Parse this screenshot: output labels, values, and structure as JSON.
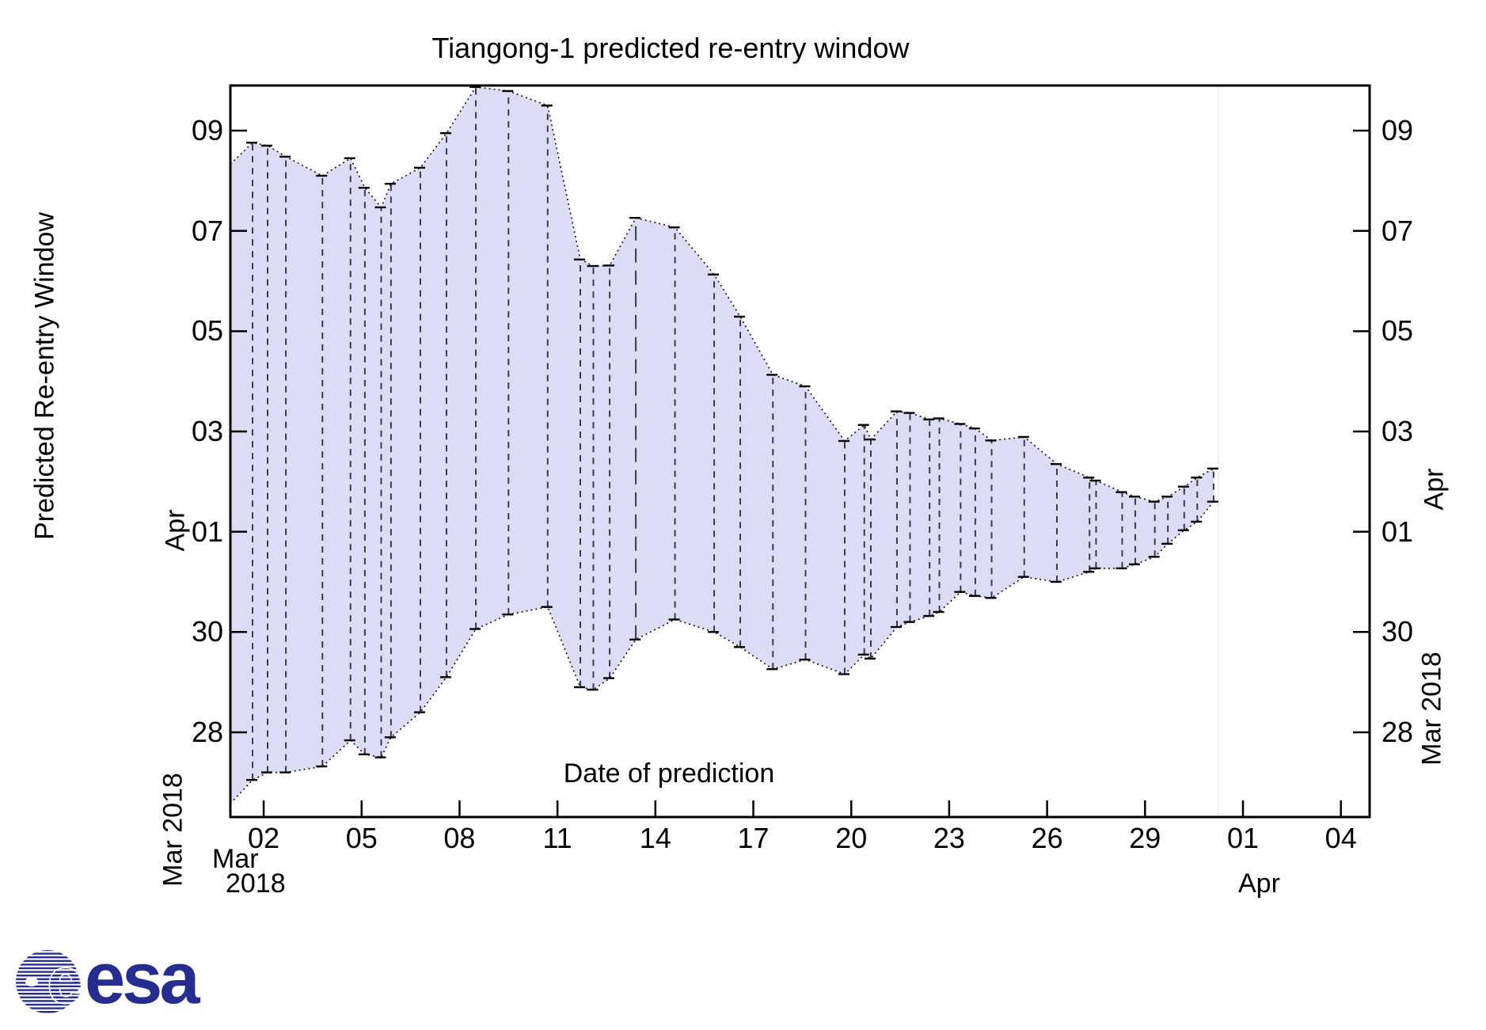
{
  "title": "Tiangong-1 predicted re-entry window",
  "x_axis": {
    "label": "Date of prediction",
    "start_month_line1": "Mar",
    "start_month_line2": "2018",
    "end_month": "Apr",
    "ticks": [
      {
        "label": "02",
        "day": 2
      },
      {
        "label": "05",
        "day": 5
      },
      {
        "label": "08",
        "day": 8
      },
      {
        "label": "11",
        "day": 11
      },
      {
        "label": "14",
        "day": 14
      },
      {
        "label": "17",
        "day": 17
      },
      {
        "label": "20",
        "day": 20
      },
      {
        "label": "23",
        "day": 23
      },
      {
        "label": "26",
        "day": 26
      },
      {
        "label": "29",
        "day": 29
      },
      {
        "label": "01",
        "day": 32
      },
      {
        "label": "04",
        "day": 35
      }
    ]
  },
  "y_axis": {
    "label": "Predicted Re-entry Window",
    "left_month_upper": "Apr",
    "left_month_lower": "Mar 2018",
    "right_month_upper": "Apr",
    "right_month_lower": "Mar 2018",
    "ticks": [
      {
        "label": "09",
        "day": 40
      },
      {
        "label": "07",
        "day": 38
      },
      {
        "label": "05",
        "day": 36
      },
      {
        "label": "03",
        "day": 34
      },
      {
        "label": "01",
        "day": 32
      },
      {
        "label": "30",
        "day": 30
      },
      {
        "label": "28",
        "day": 28
      }
    ]
  },
  "logo": {
    "wordmark": "esa",
    "globe_letter": "e",
    "color": "#262d8f"
  },
  "chart_data": {
    "type": "band",
    "title": "Tiangong-1 predicted re-entry window",
    "xlabel": "Date of prediction",
    "ylabel": "Predicted Re-entry Window",
    "x_unit": "prediction date, day-of-March-2018 (32 = Apr 01)",
    "y_unit": "predicted re-entry date, day-of-March-2018 (32 = Apr 01)",
    "x_range": [
      0.98,
      35.88
    ],
    "y_range": [
      26.31,
      40.9
    ],
    "grid": false,
    "band_fill": "#dcdcf5",
    "envelope_color": "#1a1a1a",
    "vertical_color": "#3a3a4e",
    "cap_color": "#000000",
    "marker_line_day": 31.25,
    "marker_line_color": "#f0f0fb",
    "points": [
      {
        "day": 0.98,
        "lo": 26.58,
        "hi": 39.33,
        "edge": true
      },
      {
        "day": 1.66,
        "lo": 27.05,
        "hi": 39.76
      },
      {
        "day": 2.12,
        "lo": 27.2,
        "hi": 39.7
      },
      {
        "day": 2.68,
        "lo": 27.2,
        "hi": 39.48
      },
      {
        "day": 3.8,
        "lo": 27.32,
        "hi": 39.1
      },
      {
        "day": 4.66,
        "lo": 27.84,
        "hi": 39.45
      },
      {
        "day": 5.1,
        "lo": 27.56,
        "hi": 38.86
      },
      {
        "day": 5.6,
        "lo": 27.5,
        "hi": 38.47
      },
      {
        "day": 5.9,
        "lo": 27.9,
        "hi": 38.94
      },
      {
        "day": 6.8,
        "lo": 28.4,
        "hi": 39.26
      },
      {
        "day": 7.6,
        "lo": 29.1,
        "hi": 39.95
      },
      {
        "day": 8.5,
        "lo": 30.06,
        "hi": 40.87
      },
      {
        "day": 9.5,
        "lo": 30.35,
        "hi": 40.79
      },
      {
        "day": 10.7,
        "lo": 30.5,
        "hi": 40.5
      },
      {
        "day": 11.7,
        "lo": 28.9,
        "hi": 37.43
      },
      {
        "day": 12.1,
        "lo": 28.85,
        "hi": 37.3
      },
      {
        "day": 12.6,
        "lo": 29.08,
        "hi": 37.31
      },
      {
        "day": 13.4,
        "lo": 29.85,
        "hi": 38.26,
        "long_dash": true
      },
      {
        "day": 14.6,
        "lo": 30.25,
        "hi": 38.07
      },
      {
        "day": 15.8,
        "lo": 30.0,
        "hi": 37.13
      },
      {
        "day": 16.6,
        "lo": 29.7,
        "hi": 36.29
      },
      {
        "day": 17.6,
        "lo": 29.26,
        "hi": 35.13
      },
      {
        "day": 18.6,
        "lo": 29.45,
        "hi": 34.9
      },
      {
        "day": 19.8,
        "lo": 29.16,
        "hi": 33.81
      },
      {
        "day": 20.4,
        "lo": 29.55,
        "hi": 34.13
      },
      {
        "day": 20.6,
        "lo": 29.47,
        "hi": 33.84
      },
      {
        "day": 21.4,
        "lo": 30.1,
        "hi": 34.4
      },
      {
        "day": 21.8,
        "lo": 30.2,
        "hi": 34.37
      },
      {
        "day": 22.4,
        "lo": 30.32,
        "hi": 34.24
      },
      {
        "day": 22.7,
        "lo": 30.4,
        "hi": 34.26
      },
      {
        "day": 23.35,
        "lo": 30.8,
        "hi": 34.15
      },
      {
        "day": 23.8,
        "lo": 30.72,
        "hi": 34.06
      },
      {
        "day": 24.3,
        "lo": 30.68,
        "hi": 33.82
      },
      {
        "day": 25.3,
        "lo": 31.1,
        "hi": 33.89
      },
      {
        "day": 26.3,
        "lo": 31.0,
        "hi": 33.35
      },
      {
        "day": 27.3,
        "lo": 31.2,
        "hi": 33.08
      },
      {
        "day": 27.5,
        "lo": 31.27,
        "hi": 33.02
      },
      {
        "day": 28.3,
        "lo": 31.27,
        "hi": 32.79
      },
      {
        "day": 28.7,
        "lo": 31.35,
        "hi": 32.7
      },
      {
        "day": 29.3,
        "lo": 31.5,
        "hi": 32.6
      },
      {
        "day": 29.7,
        "lo": 31.76,
        "hi": 32.7
      },
      {
        "day": 30.2,
        "lo": 32.03,
        "hi": 32.9
      },
      {
        "day": 30.6,
        "lo": 32.2,
        "hi": 33.08
      },
      {
        "day": 31.1,
        "lo": 32.6,
        "hi": 33.26
      }
    ]
  }
}
